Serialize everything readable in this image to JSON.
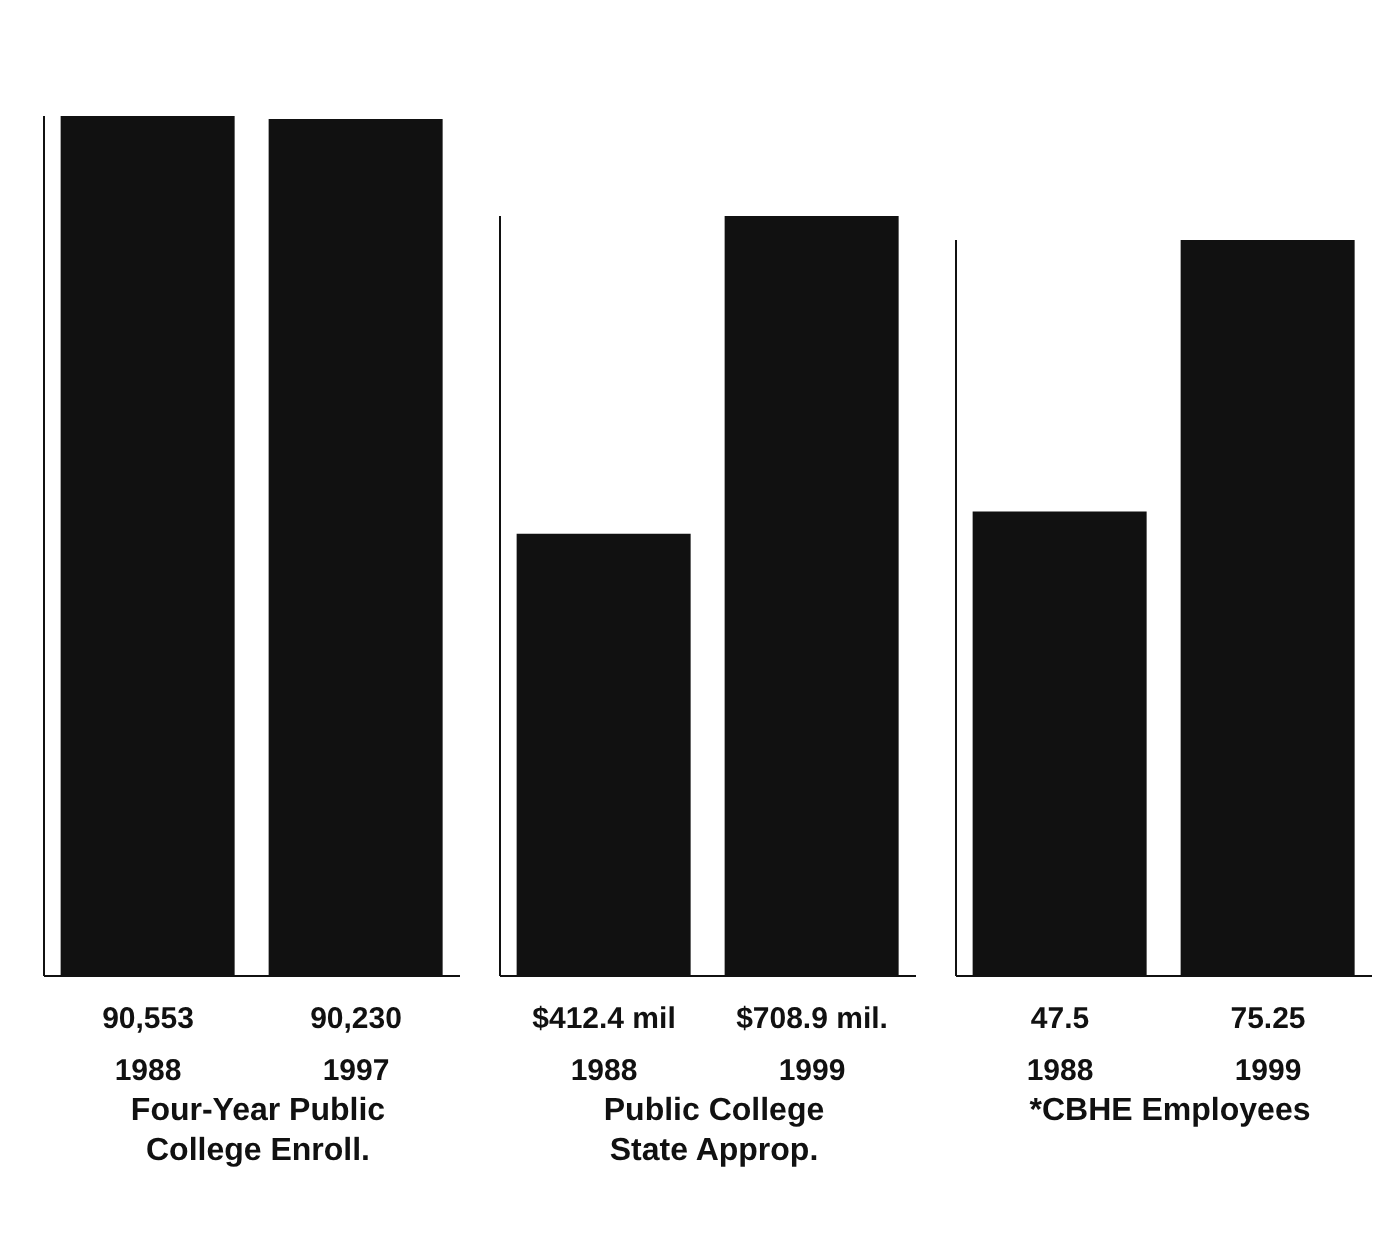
{
  "chart_data": [
    {
      "type": "bar",
      "categories": [
        "1988",
        "1997"
      ],
      "values": [
        90553,
        90230
      ],
      "value_labels": [
        "90,553",
        "90,230"
      ],
      "xlabel": "Four-Year Public\nCollege Enroll.",
      "color": "#111111"
    },
    {
      "type": "bar",
      "categories": [
        "1988",
        "1999"
      ],
      "values": [
        412.4,
        708.9
      ],
      "value_labels": [
        "$412.4 mil",
        "$708.9 mil."
      ],
      "xlabel": "Public College\nState Approp.",
      "color": "#111111"
    },
    {
      "type": "bar",
      "categories": [
        "1988",
        "1999"
      ],
      "values": [
        47.5,
        75.25
      ],
      "value_labels": [
        "47.5",
        "75.25"
      ],
      "xlabel": "*CBHE Employees",
      "color": "#111111"
    }
  ]
}
